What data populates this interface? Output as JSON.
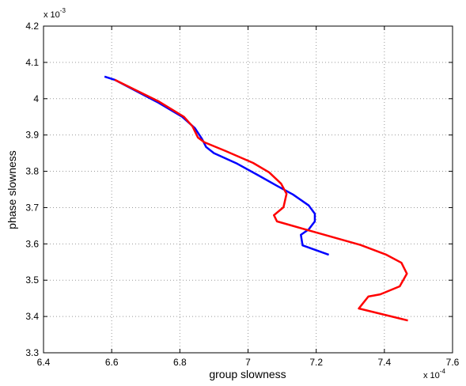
{
  "chart_data": {
    "type": "line",
    "xlabel": "group slowness",
    "ylabel": "phase slowness",
    "x_multiplier": {
      "base": "x 10",
      "exponent": "-4"
    },
    "y_multiplier": {
      "base": "x 10",
      "exponent": "-3"
    },
    "xlim": [
      6.4,
      7.6
    ],
    "xticks": [
      6.4,
      6.6,
      6.8,
      7,
      7.2,
      7.4,
      7.6
    ],
    "ylim": [
      3.3,
      4.2
    ],
    "yticks": [
      3.3,
      3.4,
      3.5,
      3.6,
      3.7,
      3.8,
      3.9,
      4,
      4.1,
      4.2
    ],
    "grid": true,
    "series": [
      {
        "color": "#0000ff",
        "x": [
          6.579,
          6.609,
          6.737,
          6.807,
          6.844,
          6.865,
          6.877,
          6.9,
          6.968,
          7.028,
          7.085,
          7.132,
          7.178,
          7.196,
          7.196,
          7.178,
          7.155,
          7.16,
          7.237
        ],
        "values": [
          4.061,
          4.052,
          3.989,
          3.95,
          3.919,
          3.889,
          3.867,
          3.85,
          3.821,
          3.79,
          3.76,
          3.736,
          3.706,
          3.683,
          3.662,
          3.64,
          3.625,
          3.596,
          3.57
        ]
      },
      {
        "color": "#ff0000",
        "x": [
          6.609,
          6.737,
          6.812,
          6.837,
          6.853,
          6.872,
          6.934,
          7.015,
          7.062,
          7.097,
          7.113,
          7.104,
          7.076,
          7.085,
          7.19,
          7.33,
          7.406,
          7.45,
          7.466,
          7.445,
          7.388,
          7.353,
          7.325,
          7.469
        ],
        "values": [
          4.052,
          3.993,
          3.95,
          3.924,
          3.893,
          3.88,
          3.856,
          3.823,
          3.797,
          3.766,
          3.738,
          3.701,
          3.679,
          3.662,
          3.634,
          3.597,
          3.57,
          3.548,
          3.518,
          3.483,
          3.461,
          3.455,
          3.422,
          3.389
        ]
      }
    ]
  }
}
